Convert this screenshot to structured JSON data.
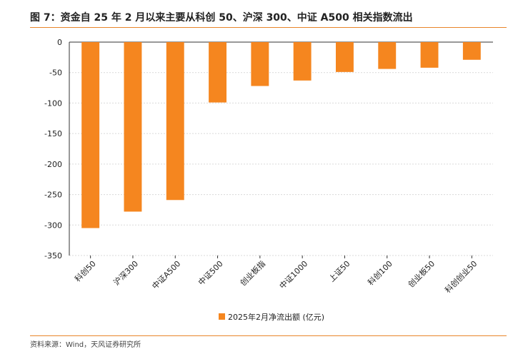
{
  "title": "图 7：资金自 25 年 2 月以来主要从科创 50、沪深 300、中证 A500 相关指数流出",
  "source": "资料来源：Wind，天风证券研究所",
  "colors": {
    "bar": "#F5861F",
    "rule": "#E8852A",
    "grid": "#D9D9D9"
  },
  "chart_data": {
    "type": "bar",
    "categories": [
      "科创50",
      "沪深300",
      "中证A500",
      "中证500",
      "创业板指",
      "中证1000",
      "上证50",
      "科创100",
      "创业板50",
      "科创创业50"
    ],
    "series": [
      {
        "name": "2025年2月净流出额 (亿元)",
        "values": [
          -305,
          -278,
          -259,
          -99,
          -72,
          -63,
          -49,
          -44,
          -42,
          -29
        ]
      }
    ],
    "yticks": [
      0,
      -50,
      -100,
      -150,
      -200,
      -250,
      -300,
      -350
    ],
    "ylim": [
      -350,
      0
    ],
    "grid": true,
    "legend": "bottom-center"
  }
}
